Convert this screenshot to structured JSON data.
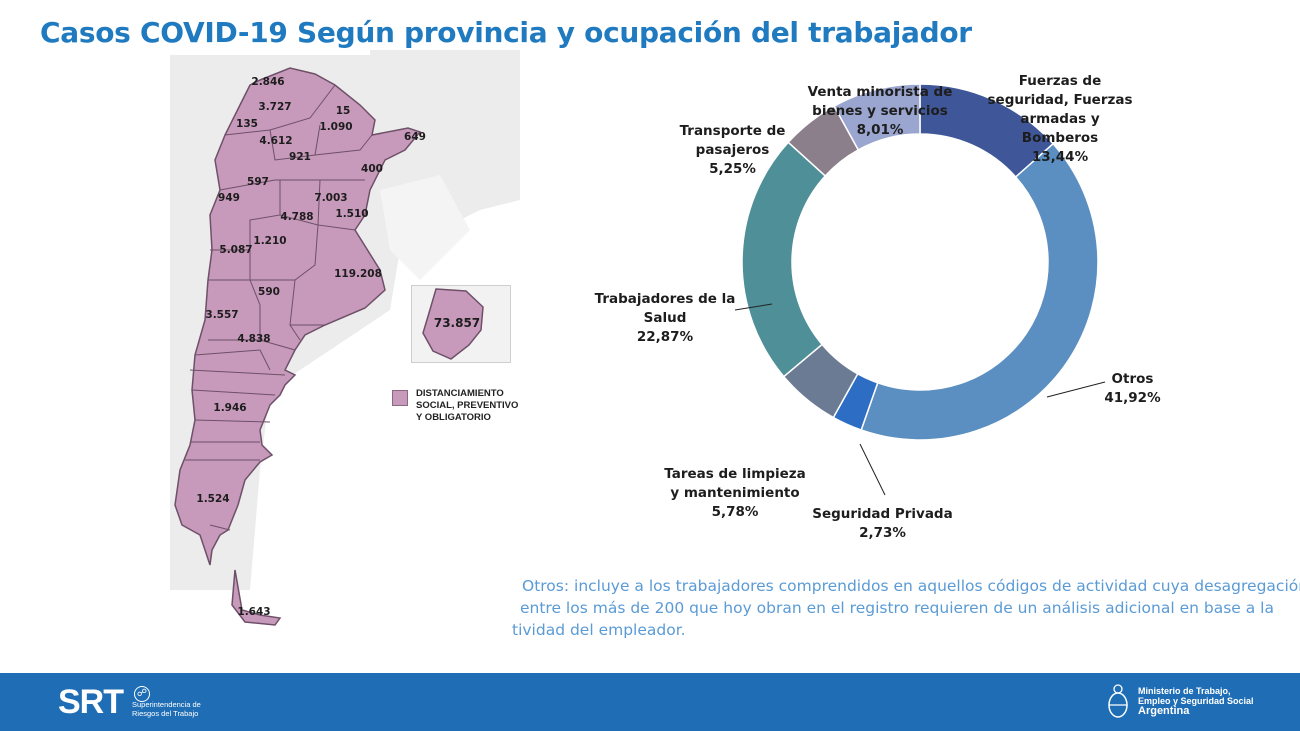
{
  "title": "Casos COVID-19 Según provincia y ocupación del trabajador",
  "map": {
    "province_values": [
      "2.846",
      "3.727",
      "15",
      "135",
      "4.612",
      "1.090",
      "649",
      "921",
      "400",
      "597",
      "7.003",
      "949",
      "4.788",
      "1.510",
      "1.210",
      "5.087",
      "119.208",
      "590",
      "3.557",
      "4.838",
      "1.946",
      "1.524",
      "1.643"
    ],
    "inset_value": "73.857",
    "legend_label": "DISTANCIAMIENTO SOCIAL, PREVENTIVO Y OBLIGATORIO",
    "fill_color": "#c79abb",
    "base_color": "#e6e6e6"
  },
  "chart_data": {
    "type": "pie",
    "subtype": "donut",
    "title": "",
    "slices": [
      {
        "label": "Fuerzas de seguridad, Fuerzas armadas y Bomberos",
        "value": 13.44,
        "display": "13,44%",
        "color": "#3f5798"
      },
      {
        "label": "Otros",
        "value": 41.92,
        "display": "41,92%",
        "color": "#5b8fc1"
      },
      {
        "label": "Seguridad Privada",
        "value": 2.73,
        "display": "2,73%",
        "color": "#2e6dc4"
      },
      {
        "label": "Tareas de limpieza y mantenimiento",
        "value": 5.78,
        "display": "5,78%",
        "color": "#6c7b94"
      },
      {
        "label": "Trabajadores de la Salud",
        "value": 22.87,
        "display": "22,87%",
        "color": "#4f8f98"
      },
      {
        "label": "Transporte de pasajeros",
        "value": 5.25,
        "display": "5,25%",
        "color": "#8a7f8a"
      },
      {
        "label": "Venta minorista de bienes y servicios",
        "value": 8.01,
        "display": "8,01%",
        "color": "#9aa6cf"
      }
    ]
  },
  "labels": {
    "fuerzas": [
      "Fuerzas de",
      "seguridad, Fuerzas",
      "armadas y",
      "Bomberos"
    ],
    "venta": [
      "Venta minorista de",
      "bienes y servicios"
    ],
    "transporte": [
      "Transporte de",
      "pasajeros"
    ],
    "salud": [
      "Trabajadores de la",
      "Salud"
    ],
    "otros": [
      "Otros"
    ],
    "limpieza": [
      "Tareas de limpieza",
      "y mantenimiento"
    ],
    "seguridad": [
      "Seguridad Privada"
    ]
  },
  "note": [
    "Otros: incluye a los trabajadores comprendidos en aquellos códigos de actividad cuya desagregación",
    "entre los más de 200 que hoy obran en el registro requieren de un análisis adicional en base a la",
    "tividad del empleador."
  ],
  "footer": {
    "srt_logo": "SRT",
    "srt_sub": [
      "Superintendencia de",
      "Riesgos del Trabajo"
    ],
    "ministry": [
      "Ministerio de Trabajo,",
      "Empleo y Seguridad Social"
    ],
    "country": "Argentina"
  }
}
